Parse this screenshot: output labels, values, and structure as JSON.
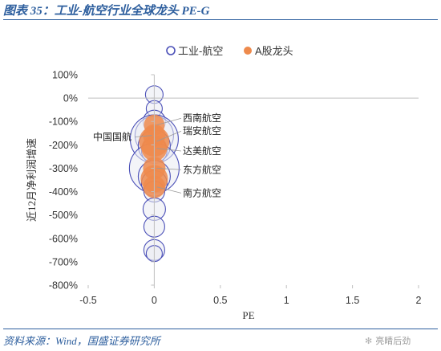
{
  "figure": {
    "title": "图表 35：工业-航空行业全球龙头 PE-G",
    "source": "资料来源：Wind，国盛证券研究所",
    "watermark": "亮睛后劲"
  },
  "colors": {
    "header_blue": "#2e5f9e",
    "series_global_border": "#4b50b8",
    "series_global_fill": "#e9ebf2",
    "series_a_fill": "#ee8a4c",
    "axis": "#bfbfbf",
    "text": "#333333"
  },
  "chart_data": {
    "type": "scatter",
    "subtype": "bubble",
    "title": "",
    "xlabel": "PE",
    "ylabel": "近12月净利润增速",
    "xlim": [
      -0.5,
      2
    ],
    "ylim": [
      -800,
      100
    ],
    "x_ticks": [
      -0.5,
      0,
      0.5,
      1,
      1.5,
      2
    ],
    "x_tick_labels": [
      "-0.5",
      "0",
      "0.5",
      "1",
      "1.5",
      "2"
    ],
    "y_ticks": [
      100,
      0,
      -100,
      -200,
      -300,
      -400,
      -500,
      -600,
      -700,
      -800
    ],
    "y_tick_labels": [
      "100%",
      "0%",
      "-100%",
      "-200%",
      "-300%",
      "-400%",
      "-500%",
      "-600%",
      "-700%",
      "-800%"
    ],
    "y_unit": "%",
    "grid": false,
    "legend_position": "top",
    "series": [
      {
        "name": "工业-航空",
        "style": "outline",
        "points": [
          {
            "x": 0,
            "y": 15,
            "size": 11
          },
          {
            "x": 0,
            "y": -45,
            "size": 10
          },
          {
            "x": 0,
            "y": -100,
            "size": 14
          },
          {
            "x": 0,
            "y": -160,
            "size": 24
          },
          {
            "x": 0,
            "y": -175,
            "size": 30
          },
          {
            "x": 0,
            "y": -205,
            "size": 20
          },
          {
            "x": 0,
            "y": -225,
            "size": 16
          },
          {
            "x": 0,
            "y": -300,
            "size": 31
          },
          {
            "x": 0,
            "y": -335,
            "size": 20
          },
          {
            "x": 0,
            "y": -365,
            "size": 16
          },
          {
            "x": 0,
            "y": -400,
            "size": 13
          },
          {
            "x": 0,
            "y": -475,
            "size": 14
          },
          {
            "x": 0,
            "y": -550,
            "size": 13
          },
          {
            "x": 0,
            "y": -650,
            "size": 13
          },
          {
            "x": 0,
            "y": -665,
            "size": 10
          }
        ]
      },
      {
        "name": "A股龙头",
        "style": "filled",
        "points": [
          {
            "x": 0,
            "y": -115,
            "size": 13,
            "label": "西南航空"
          },
          {
            "x": 0,
            "y": -160,
            "size": 14,
            "label": "中国国航"
          },
          {
            "x": 0,
            "y": -185,
            "size": 19,
            "label": "瑞安航空"
          },
          {
            "x": 0,
            "y": -215,
            "size": 16,
            "label": "达美航空"
          },
          {
            "x": 0,
            "y": -300,
            "size": 14,
            "label": "东方航空"
          },
          {
            "x": 0,
            "y": -345,
            "size": 17
          },
          {
            "x": 0,
            "y": -380,
            "size": 14,
            "label": "南方航空"
          }
        ]
      }
    ],
    "annotations": [
      {
        "text": "西南航空",
        "series": 1,
        "point": 0,
        "side": "right",
        "label_y": -100
      },
      {
        "text": "瑞安航空",
        "series": 1,
        "point": 2,
        "side": "right",
        "label_y": -155
      },
      {
        "text": "中国国航",
        "series": 1,
        "point": 1,
        "side": "left",
        "label_y": -180
      },
      {
        "text": "达美航空",
        "series": 1,
        "point": 3,
        "side": "right",
        "label_y": -240
      },
      {
        "text": "东方航空",
        "series": 1,
        "point": 4,
        "side": "right",
        "label_y": -320
      },
      {
        "text": "南方航空",
        "series": 1,
        "point": 6,
        "side": "right",
        "label_y": -420
      }
    ]
  }
}
